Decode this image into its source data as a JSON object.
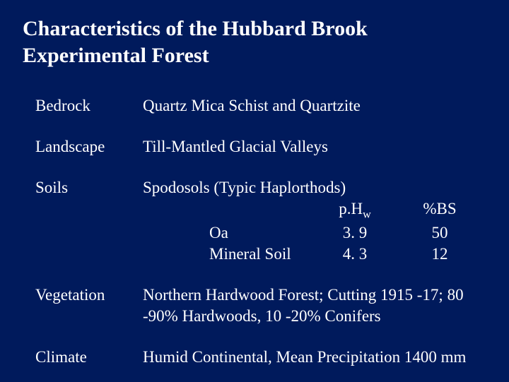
{
  "background_color": "#001a5c",
  "text_color": "#ffffff",
  "font_family": "Times New Roman",
  "title_fontsize": 30,
  "body_fontsize": 23,
  "title": "Characteristics of the Hubbard Brook Experimental Forest",
  "rows": {
    "bedrock": {
      "label": "Bedrock",
      "value": "Quartz Mica Schist and Quartzite"
    },
    "landscape": {
      "label": "Landscape",
      "value": "Till-Mantled Glacial Valleys"
    },
    "soils": {
      "label": "Soils",
      "value": "Spodosols (Typic Haplorthods)",
      "table": {
        "header": {
          "col1": "",
          "col2_html": "p.H<sub>w</sub>",
          "col3": "%BS"
        },
        "data": [
          {
            "col1": "Oa",
            "col2": "3. 9",
            "col3": "50"
          },
          {
            "col1": "Mineral Soil",
            "col2": "4. 3",
            "col3": "12"
          }
        ]
      }
    },
    "vegetation": {
      "label": "Vegetation",
      "value": "Northern Hardwood Forest; Cutting 1915 -17; 80 -90% Hardwoods, 10 -20% Conifers"
    },
    "climate": {
      "label": "Climate",
      "value": "Humid Continental, Mean Precipitation 1400 mm"
    }
  }
}
